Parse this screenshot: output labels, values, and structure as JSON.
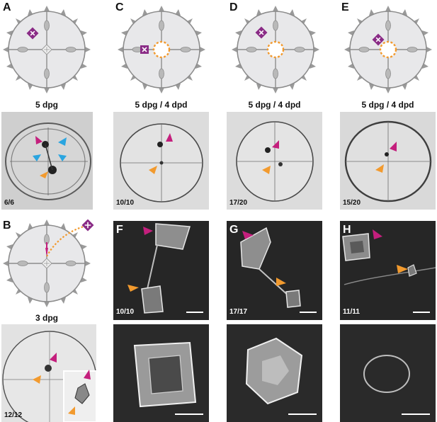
{
  "panels": {
    "A": {
      "letter": "A",
      "caption": "5 dpg",
      "count": "6/6"
    },
    "B": {
      "letter": "B",
      "caption": "3 dpg",
      "count": "12/12"
    },
    "C": {
      "letter": "C",
      "caption": "5 dpg / 4 dpd",
      "count": "10/10"
    },
    "D": {
      "letter": "D",
      "caption": "5 dpg / 4 dpd",
      "count": "17/20"
    },
    "E": {
      "letter": "E",
      "caption": "5 dpg / 4 dpd",
      "count": "15/20"
    },
    "F": {
      "letter": "F",
      "count": "10/10"
    },
    "G": {
      "letter": "G",
      "count": "17/17"
    },
    "H": {
      "letter": "H",
      "count": "11/11"
    }
  },
  "colors": {
    "magenta": "#c41f7d",
    "orange": "#f29a2e",
    "cyan": "#2aa5e0",
    "purple": "#8a2b86",
    "disc": "#e8e8ea",
    "disc_stroke": "#8c8c8c"
  }
}
